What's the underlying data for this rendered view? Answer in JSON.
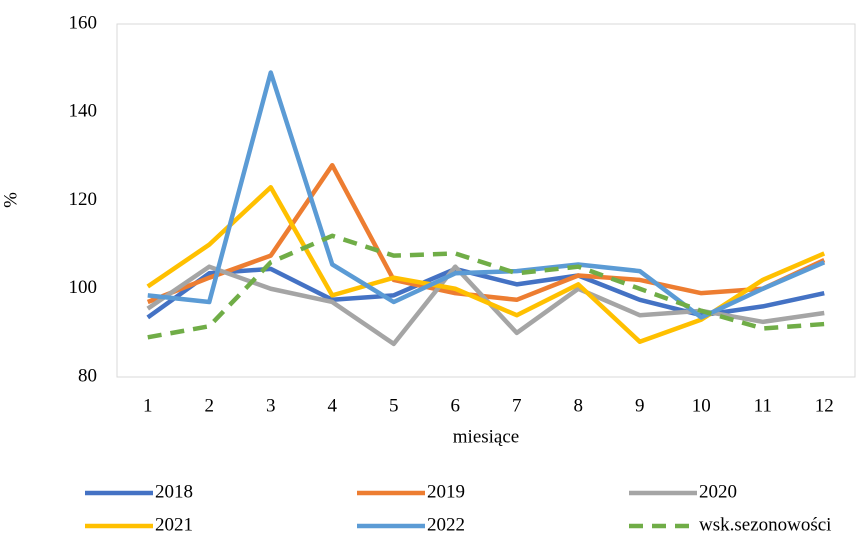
{
  "chart_data": {
    "type": "line",
    "x_label": "miesiące",
    "y_label": "%",
    "categories": [
      "1",
      "2",
      "3",
      "4",
      "5",
      "6",
      "7",
      "8",
      "9",
      "10",
      "11",
      "12"
    ],
    "ylim": [
      80,
      160
    ],
    "yticks": [
      80,
      100,
      120,
      140,
      160
    ],
    "series": [
      {
        "name": "2018",
        "color": "#4472c4",
        "dashed": false,
        "values": [
          93.5,
          103.5,
          104.5,
          97.5,
          98.5,
          104.5,
          101,
          103,
          97.5,
          94,
          96,
          99
        ]
      },
      {
        "name": "2019",
        "color": "#ed7d31",
        "dashed": false,
        "values": [
          97,
          102.5,
          107.5,
          128,
          102,
          99,
          97.5,
          103,
          102,
          99,
          100,
          106.5
        ]
      },
      {
        "name": "2020",
        "color": "#a5a5a5",
        "dashed": false,
        "values": [
          95.5,
          105,
          100,
          97,
          87.5,
          105,
          90,
          100,
          94,
          95,
          92.5,
          94.5
        ]
      },
      {
        "name": "2021",
        "color": "#ffc000",
        "dashed": false,
        "values": [
          100.5,
          110,
          123,
          98.5,
          102.5,
          100,
          94,
          101,
          88,
          93,
          102,
          108
        ]
      },
      {
        "name": "2022",
        "color": "#5b9bd5",
        "dashed": false,
        "values": [
          98.5,
          97,
          149,
          105.5,
          97,
          103.5,
          104,
          105.5,
          104,
          93.5,
          100,
          106
        ]
      },
      {
        "name": "wsk.sezonowości",
        "color": "#70ad47",
        "dashed": true,
        "values": [
          89,
          91.5,
          106,
          112,
          107.5,
          108,
          103.5,
          105,
          100,
          95,
          91,
          92
        ]
      }
    ]
  }
}
